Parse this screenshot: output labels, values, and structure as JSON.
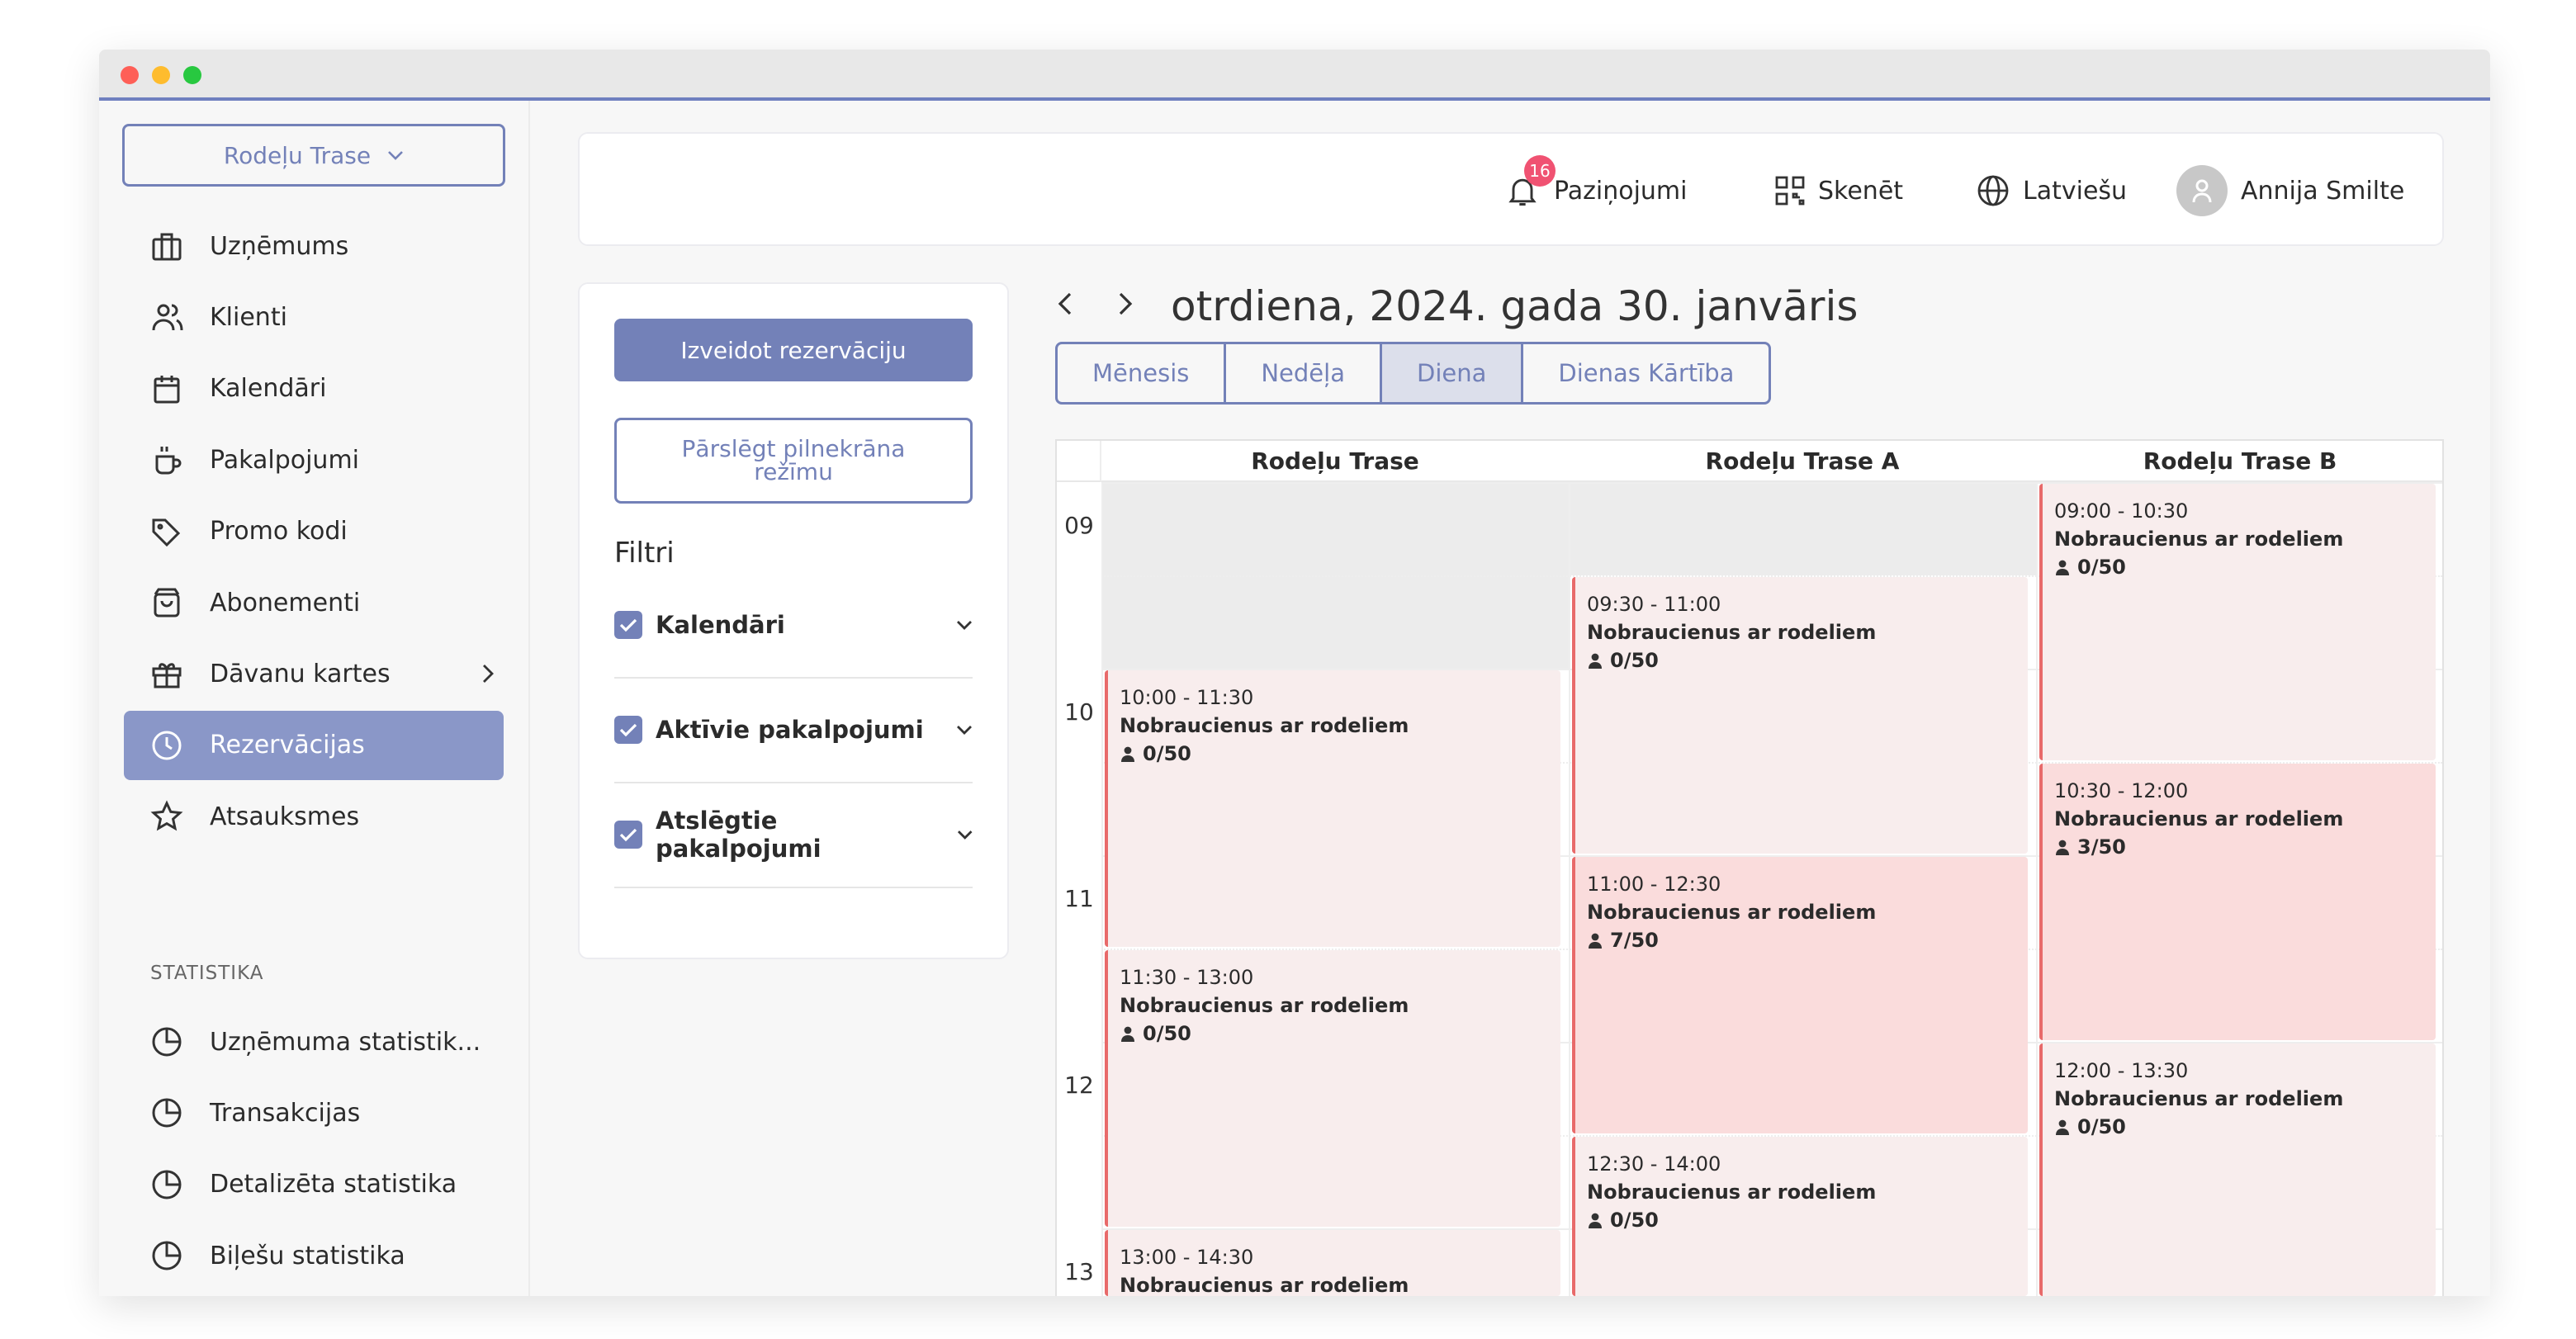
{
  "window": {
    "controls": [
      "close",
      "minimize",
      "maximize"
    ],
    "colors": {
      "close": "#fe5f57",
      "minimize": "#febc2e",
      "maximize": "#28c840"
    }
  },
  "sidebar": {
    "venue_select": "Rodeļu Trase",
    "items": [
      {
        "label": "Uzņēmums",
        "icon": "briefcase-icon"
      },
      {
        "label": "Klienti",
        "icon": "users-icon"
      },
      {
        "label": "Kalendāri",
        "icon": "calendar-icon"
      },
      {
        "label": "Pakalpojumi",
        "icon": "cup-icon"
      },
      {
        "label": "Promo kodi",
        "icon": "tag-icon"
      },
      {
        "label": "Abonementi",
        "icon": "bag-icon"
      },
      {
        "label": "Dāvanu kartes",
        "icon": "gift-icon"
      },
      {
        "label": "Rezervācijas",
        "icon": "clock-icon",
        "active": true
      },
      {
        "label": "Atsauksmes",
        "icon": "star-icon"
      }
    ],
    "section_title": "STATISTIKA",
    "stats": [
      {
        "label": "Uzņēmuma statistik...",
        "icon": "pie-chart-icon"
      },
      {
        "label": "Transakcijas",
        "icon": "pie-chart-icon"
      },
      {
        "label": "Detalizēta statistika",
        "icon": "pie-chart-icon"
      },
      {
        "label": "Biļešu statistika",
        "icon": "pie-chart-icon"
      }
    ]
  },
  "topbar": {
    "notifications": "Paziņojumi",
    "notification_count": "16",
    "scan": "Skenēt",
    "language": "Latviešu",
    "user": "Annija Smilte"
  },
  "filters": {
    "create_button": "Izveidot rezervāciju",
    "fullscreen_button": "Pārslēgt pilnekrāna režīmu",
    "title": "Filtri",
    "items": [
      {
        "label": "Kalendāri",
        "checked": true
      },
      {
        "label": "Aktīvie pakalpojumi",
        "checked": true
      },
      {
        "label": "Atslēgtie pakalpojumi",
        "checked": true
      }
    ]
  },
  "calendar": {
    "date_title": "otrdiena, 2024. gada 30. janvāris",
    "views": [
      "Mēnesis",
      "Nedēļa",
      "Diena",
      "Dienas Kārtība"
    ],
    "selected_view": "Diena",
    "resources": [
      "Rodeļu Trase",
      "Rodeļu Trase A",
      "Rodeļu Trase B"
    ],
    "hours": [
      "09",
      "10",
      "11",
      "12",
      "13"
    ],
    "events": [
      {
        "resource": 0,
        "time": "10:00 - 11:30",
        "title": "Nobraucienus ar rodeliem",
        "capacity": "0/50",
        "start": 10,
        "end": 11.5
      },
      {
        "resource": 0,
        "time": "11:30 - 13:00",
        "title": "Nobraucienus ar rodeliem",
        "capacity": "0/50",
        "start": 11.5,
        "end": 13
      },
      {
        "resource": 0,
        "time": "13:00 - 14:30",
        "title": "Nobraucienus ar rodeliem",
        "capacity": "",
        "start": 13,
        "end": 14.5
      },
      {
        "resource": 1,
        "time": "09:30 - 11:00",
        "title": "Nobraucienus ar rodeliem",
        "capacity": "0/50",
        "start": 9.5,
        "end": 11
      },
      {
        "resource": 1,
        "time": "11:00 - 12:30",
        "title": "Nobraucienus ar rodeliem",
        "capacity": "7/50",
        "start": 11,
        "end": 12.5,
        "booked": true
      },
      {
        "resource": 1,
        "time": "12:30 - 14:00",
        "title": "Nobraucienus ar rodeliem",
        "capacity": "0/50",
        "start": 12.5,
        "end": 14
      },
      {
        "resource": 2,
        "time": "09:00 - 10:30",
        "title": "Nobraucienus ar rodeliem",
        "capacity": "0/50",
        "start": 9,
        "end": 10.5
      },
      {
        "resource": 2,
        "time": "10:30 - 12:00",
        "title": "Nobraucienus ar rodeliem",
        "capacity": "3/50",
        "start": 10.5,
        "end": 12,
        "booked": true
      },
      {
        "resource": 2,
        "time": "12:00 - 13:30",
        "title": "Nobraucienus ar rodeliem",
        "capacity": "0/50",
        "start": 12,
        "end": 13.5
      }
    ]
  },
  "colors": {
    "primary": "#7381b8",
    "event": "#f8eded",
    "event_booked": "#fadcdc",
    "event_border": "#e86a6a",
    "badge": "#f05272"
  }
}
